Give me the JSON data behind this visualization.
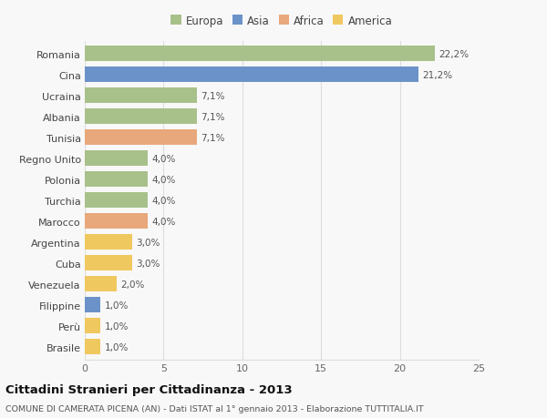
{
  "categories": [
    "Romania",
    "Cina",
    "Ucraina",
    "Albania",
    "Tunisia",
    "Regno Unito",
    "Polonia",
    "Turchia",
    "Marocco",
    "Argentina",
    "Cuba",
    "Venezuela",
    "Filippine",
    "Perù",
    "Brasile"
  ],
  "values": [
    22.2,
    21.2,
    7.1,
    7.1,
    7.1,
    4.0,
    4.0,
    4.0,
    4.0,
    3.0,
    3.0,
    2.0,
    1.0,
    1.0,
    1.0
  ],
  "labels": [
    "22,2%",
    "21,2%",
    "7,1%",
    "7,1%",
    "7,1%",
    "4,0%",
    "4,0%",
    "4,0%",
    "4,0%",
    "3,0%",
    "3,0%",
    "2,0%",
    "1,0%",
    "1,0%",
    "1,0%"
  ],
  "continents": [
    "Europa",
    "Asia",
    "Europa",
    "Europa",
    "Africa",
    "Europa",
    "Europa",
    "Europa",
    "Africa",
    "America",
    "America",
    "America",
    "Asia",
    "America",
    "America"
  ],
  "colors": {
    "Europa": "#a8c08a",
    "Asia": "#6b93c9",
    "Africa": "#e8a87c",
    "America": "#f0c860"
  },
  "legend_order": [
    "Europa",
    "Asia",
    "Africa",
    "America"
  ],
  "title": "Cittadini Stranieri per Cittadinanza - 2013",
  "subtitle": "COMUNE DI CAMERATA PICENA (AN) - Dati ISTAT al 1° gennaio 2013 - Elaborazione TUTTITALIA.IT",
  "xlim": [
    0,
    25
  ],
  "xticks": [
    0,
    5,
    10,
    15,
    20,
    25
  ],
  "background_color": "#f8f8f8",
  "bar_height": 0.75,
  "grid_color": "#dddddd"
}
